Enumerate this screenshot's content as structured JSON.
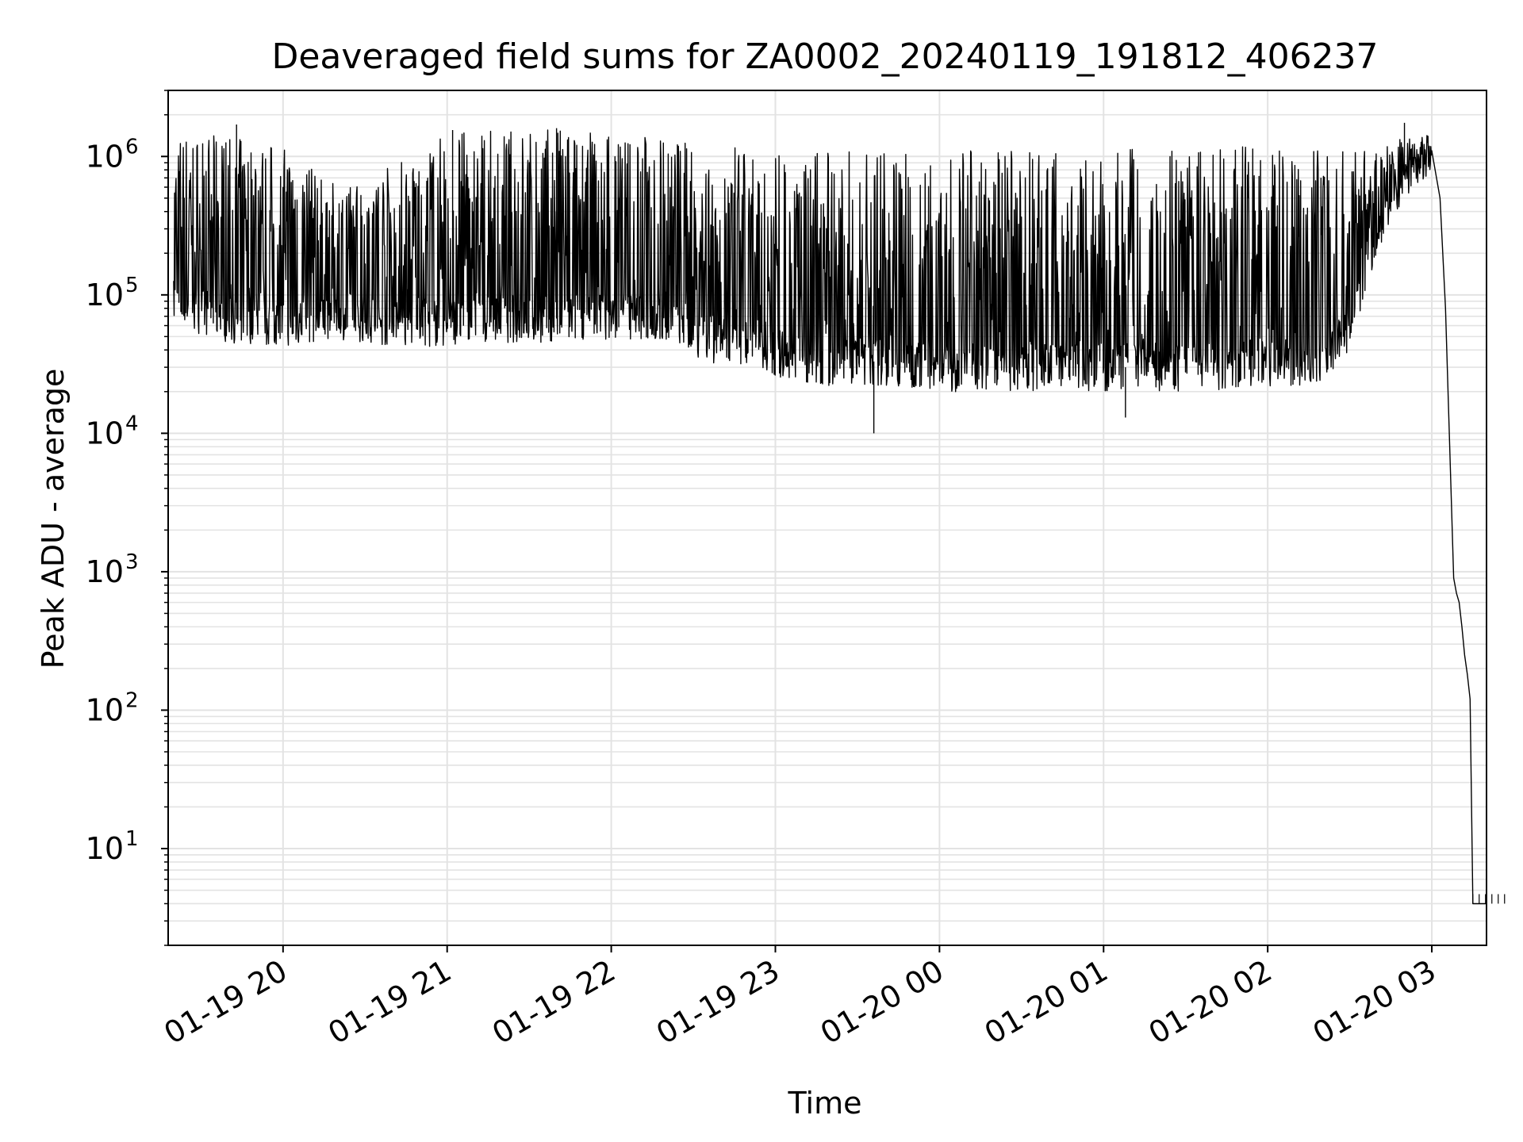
{
  "chart_data": {
    "type": "line",
    "title": "Deaveraged field sums for ZA0002_20240119_191812_406237",
    "xlabel": "Time",
    "ylabel": "Peak ADU - average",
    "yscale": "log",
    "ylim": [
      2,
      3000000
    ],
    "xlim": [
      "2024-01-19 19:18",
      "2024-01-20 03:20"
    ],
    "grid": true,
    "line_color": "#000000",
    "grid_color": "#e3e3e3",
    "x_ticks": [
      {
        "value": "2024-01-19 20:00",
        "label": "01-19 20"
      },
      {
        "value": "2024-01-19 21:00",
        "label": "01-19 21"
      },
      {
        "value": "2024-01-19 22:00",
        "label": "01-19 22"
      },
      {
        "value": "2024-01-19 23:00",
        "label": "01-19 23"
      },
      {
        "value": "2024-01-20 00:00",
        "label": "01-20 00"
      },
      {
        "value": "2024-01-20 01:00",
        "label": "01-20 01"
      },
      {
        "value": "2024-01-20 02:00",
        "label": "01-20 02"
      },
      {
        "value": "2024-01-20 03:00",
        "label": "01-20 03"
      }
    ],
    "y_ticks": [
      {
        "value": 10,
        "base": "10",
        "exp": "1"
      },
      {
        "value": 100,
        "base": "10",
        "exp": "2"
      },
      {
        "value": 1000,
        "base": "10",
        "exp": "3"
      },
      {
        "value": 10000,
        "base": "10",
        "exp": "4"
      },
      {
        "value": 100000,
        "base": "10",
        "exp": "5"
      },
      {
        "value": 1000000,
        "base": "10",
        "exp": "6"
      }
    ],
    "series": [
      {
        "style": "envelope",
        "x": [
          "2024-01-19 19:20",
          "2024-01-19 19:40",
          "2024-01-19 20:00",
          "2024-01-19 20:20",
          "2024-01-19 20:40",
          "2024-01-19 21:00",
          "2024-01-19 21:20",
          "2024-01-19 21:40",
          "2024-01-19 22:00",
          "2024-01-19 22:20",
          "2024-01-19 22:40",
          "2024-01-19 23:00",
          "2024-01-19 23:20",
          "2024-01-19 23:40",
          "2024-01-20 00:00",
          "2024-01-20 00:20",
          "2024-01-20 00:40",
          "2024-01-20 01:00",
          "2024-01-20 01:20",
          "2024-01-20 01:40",
          "2024-01-20 02:00",
          "2024-01-20 02:20",
          "2024-01-20 02:30",
          "2024-01-20 02:40",
          "2024-01-20 02:50",
          "2024-01-20 03:00"
        ],
        "low": [
          60000,
          45000,
          42000,
          48000,
          42000,
          42000,
          45000,
          45000,
          48000,
          45000,
          30000,
          25000,
          22000,
          22000,
          20000,
          20000,
          20000,
          20000,
          20000,
          20000,
          22000,
          22000,
          40000,
          200000,
          500000,
          700000
        ],
        "high": [
          1500000,
          1400000,
          1200000,
          600000,
          900000,
          1500000,
          1550000,
          1600000,
          1500000,
          1400000,
          1200000,
          1100000,
          1100000,
          1100000,
          1100000,
          1100000,
          1100000,
          1100000,
          1150000,
          1150000,
          1200000,
          1200000,
          1100000,
          1100000,
          1500000,
          1200000
        ]
      },
      {
        "style": "line",
        "x": [
          "2024-01-20 03:00",
          "2024-01-20 03:03",
          "2024-01-20 03:05",
          "2024-01-20 03:07",
          "2024-01-20 03:08",
          "2024-01-20 03:09",
          "2024-01-20 03:10",
          "2024-01-20 03:11",
          "2024-01-20 03:12",
          "2024-01-20 03:13",
          "2024-01-20 03:14",
          "2024-01-20 03:15",
          "2024-01-20 03:16",
          "2024-01-20 03:17",
          "2024-01-20 03:20"
        ],
        "y": [
          1100000,
          500000,
          80000,
          4000,
          900,
          700,
          600,
          400,
          250,
          180,
          120,
          4,
          4,
          4,
          4
        ]
      },
      {
        "style": "spike",
        "x": [
          "2024-01-19 19:43",
          "2024-01-19 21:02",
          "2024-01-19 21:40",
          "2024-01-19 22:38",
          "2024-01-19 23:36",
          "2024-01-20 01:08",
          "2024-01-20 02:50"
        ],
        "y": [
          1700000,
          1550000,
          1600000,
          300000,
          10000,
          13000,
          1750000
        ]
      }
    ]
  }
}
